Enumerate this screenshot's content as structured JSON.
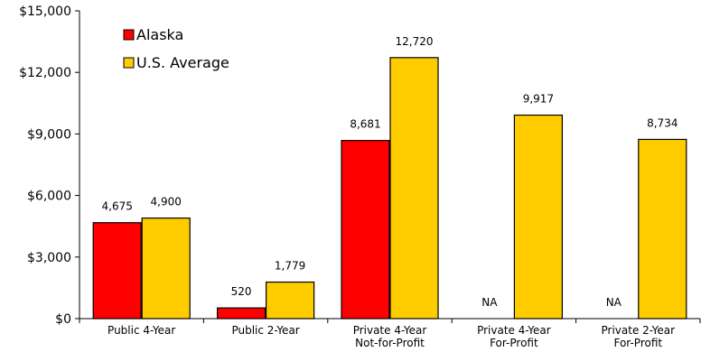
{
  "chart_data": {
    "type": "bar",
    "categories": [
      [
        "Public 4-Year"
      ],
      [
        "Public 2-Year"
      ],
      [
        "Private 4-Year",
        "Not-for-Profit"
      ],
      [
        "Private 4-Year",
        "For-Profit"
      ],
      [
        "Private 2-Year",
        "For-Profit"
      ]
    ],
    "series": [
      {
        "name": "Alaska",
        "color": "#ff0000",
        "values": [
          4675,
          520,
          8681,
          null,
          null
        ],
        "labels": [
          "4,675",
          "520",
          "8,681",
          "NA",
          "NA"
        ]
      },
      {
        "name": "U.S. Average",
        "color": "#ffcc00",
        "values": [
          4900,
          1779,
          12720,
          9917,
          8734
        ],
        "labels": [
          "4,900",
          "1,779",
          "12,720",
          "9,917",
          "8,734"
        ]
      }
    ],
    "ylim": [
      0,
      15000
    ],
    "yticks": [
      {
        "value": 0,
        "label": "$0"
      },
      {
        "value": 3000,
        "label": "$3,000"
      },
      {
        "value": 6000,
        "label": "$6,000"
      },
      {
        "value": 9000,
        "label": "$9,000"
      },
      {
        "value": 12000,
        "label": "$12,000"
      },
      {
        "value": 15000,
        "label": "$15,000"
      }
    ],
    "legend": "top-left",
    "grid": false
  }
}
